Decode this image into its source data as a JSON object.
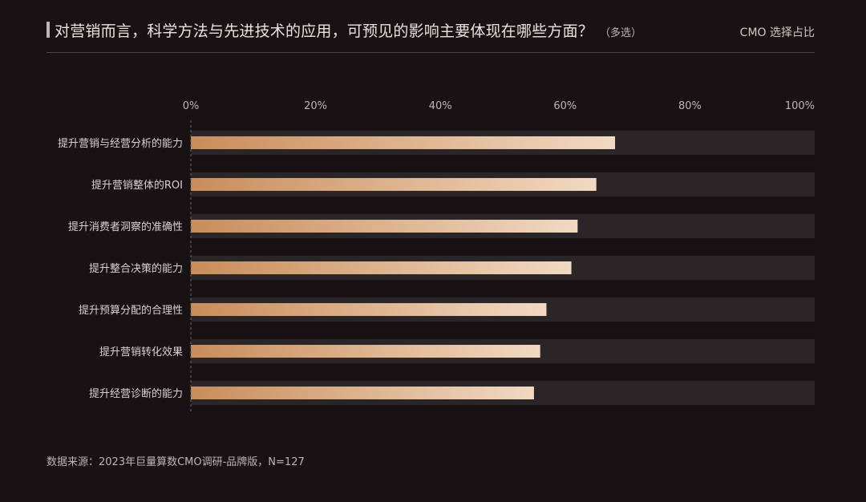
{
  "header": {
    "title": "对营销而言，科学方法与先进技术的应用，可预见的影响主要体现在哪些方面？",
    "note": "（多选）",
    "unit": "CMO 选择占比"
  },
  "footer": {
    "source": "数据来源：2023年巨量算数CMO调研-品牌版，N=127"
  },
  "colors": {
    "track": "#2a2627",
    "bar_start": "#c98d5a",
    "bar_end": "#f1d9c2",
    "tick_text": "#bdb7b3",
    "label_text": "#d8d3d0"
  },
  "chart_data": {
    "type": "bar",
    "orientation": "horizontal",
    "title": "对营销而言，科学方法与先进技术的应用，可预见的影响主要体现在哪些方面？",
    "xlabel": "",
    "ylabel": "",
    "xlim": [
      0,
      100
    ],
    "ticks": [
      "0%",
      "20%",
      "40%",
      "60%",
      "80%",
      "100%"
    ],
    "tick_values": [
      0,
      20,
      40,
      60,
      80,
      100
    ],
    "categories": [
      "提升营销与经营分析的能力",
      "提升营销整体的ROI",
      "提升消费者洞察的准确性",
      "提升整合决策的能力",
      "提升预算分配的合理性",
      "提升营销转化效果",
      "提升经营诊断的能力"
    ],
    "values": [
      68,
      65,
      62,
      61,
      57,
      56,
      55
    ],
    "grid": false,
    "legend": "none"
  }
}
